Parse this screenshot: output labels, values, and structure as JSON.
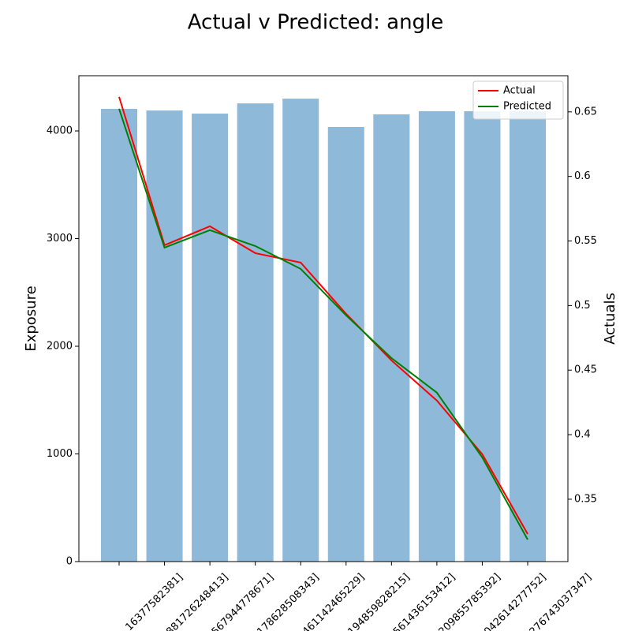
{
  "chart_data": {
    "type": "bar_line",
    "title": "Actual v Predicted: angle",
    "categories": [
      "16377582381]",
      "881726248413]",
      "567944778671]",
      "178628508343]",
      "461142465229]",
      "194859828215]",
      "561436153412]",
      "209855785392]",
      "042614277752]",
      "276743037347]"
    ],
    "bars": {
      "name": "Exposure",
      "color": "#8fb9d9",
      "values": [
        4205,
        4190,
        4161,
        4256,
        4300,
        4037,
        4154,
        4183,
        4183,
        4183
      ]
    },
    "y_label": "Exposure",
    "y2_label": "Actuals",
    "ylim": [
      0,
      4513
    ],
    "yticks": [
      0,
      1000,
      2000,
      3000,
      4000
    ],
    "y2lim": [
      0.3017,
      0.678
    ],
    "y2ticks": [
      0.35,
      0.4,
      0.45,
      0.5,
      0.55,
      0.6,
      0.65
    ],
    "series": [
      {
        "name": "Actual",
        "color": "#ff0000",
        "axis": "y2",
        "values": [
          0.6616,
          0.5467,
          0.5614,
          0.5406,
          0.5333,
          0.4936,
          0.4575,
          0.4264,
          0.3848,
          0.3231
        ]
      },
      {
        "name": "Predicted",
        "color": "#008000",
        "axis": "y2",
        "values": [
          0.6524,
          0.5449,
          0.5584,
          0.5461,
          0.5284,
          0.4924,
          0.4593,
          0.4325,
          0.3823,
          0.3187
        ]
      }
    ],
    "legend": "upper right"
  }
}
